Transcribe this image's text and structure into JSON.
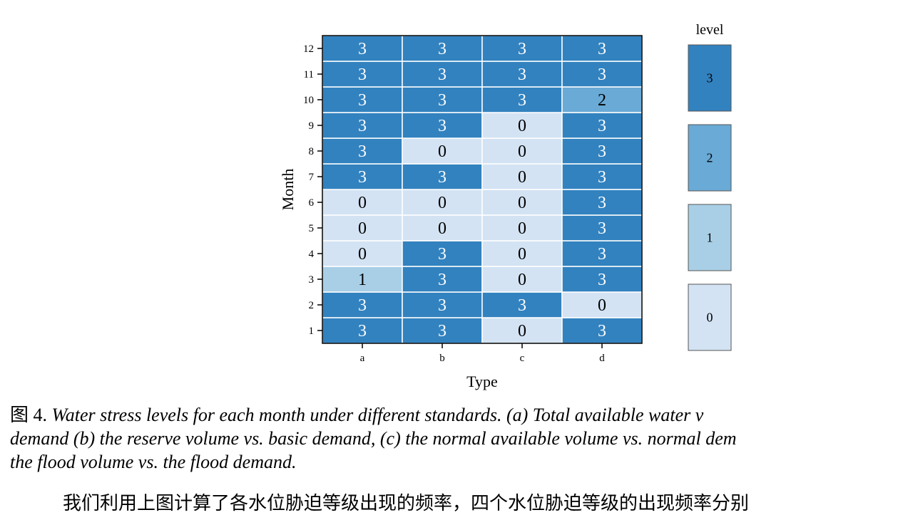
{
  "chart_data": {
    "type": "heatmap",
    "xlabel": "Type",
    "ylabel": "Month",
    "x_categories": [
      "a",
      "b",
      "c",
      "d"
    ],
    "y_categories": [
      "1",
      "2",
      "3",
      "4",
      "5",
      "6",
      "7",
      "8",
      "9",
      "10",
      "11",
      "12"
    ],
    "values": [
      [
        3,
        3,
        0,
        3
      ],
      [
        3,
        3,
        3,
        0
      ],
      [
        1,
        3,
        0,
        3
      ],
      [
        0,
        3,
        0,
        3
      ],
      [
        0,
        0,
        0,
        3
      ],
      [
        0,
        0,
        0,
        3
      ],
      [
        3,
        3,
        0,
        3
      ],
      [
        3,
        0,
        0,
        3
      ],
      [
        3,
        3,
        0,
        3
      ],
      [
        3,
        3,
        3,
        2
      ],
      [
        3,
        3,
        3,
        3
      ],
      [
        3,
        3,
        3,
        3
      ]
    ],
    "legend": {
      "title": "level",
      "levels": [
        "3",
        "2",
        "1",
        "0"
      ],
      "placement": "right"
    },
    "colors": {
      "0": "#d3e3f3",
      "1": "#a9cfe6",
      "2": "#6aaad6",
      "3": "#3282bf"
    },
    "label_colors": {
      "0": "#000000",
      "1": "#000000",
      "2": "#000000",
      "3": "#ffffff"
    }
  },
  "caption": {
    "figure_label": "图 4.",
    "line1": "Water stress levels for each month under different standards. (a) Total available water v",
    "line2": "demand (b) the reserve volume vs. basic demand, (c) the normal available volume vs. normal dem",
    "line3": "the flood volume vs. the flood demand."
  },
  "partial_text": "我们利用上图计算了各水位胁迫等级出现的频率，四个水位胁迫等级的出现频率分别"
}
